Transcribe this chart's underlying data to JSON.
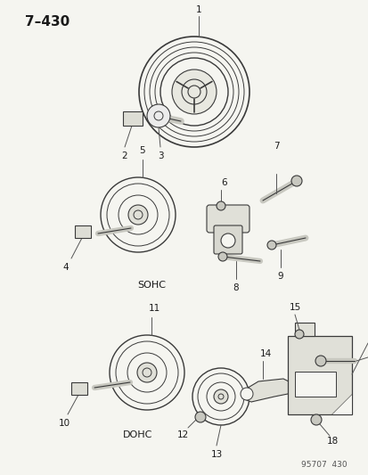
{
  "title": "7–430",
  "background_color": "#f5f5f0",
  "diagram_number": "95707  430",
  "line_color": "#3a3a3a",
  "label_color": "#1a1a1a"
}
